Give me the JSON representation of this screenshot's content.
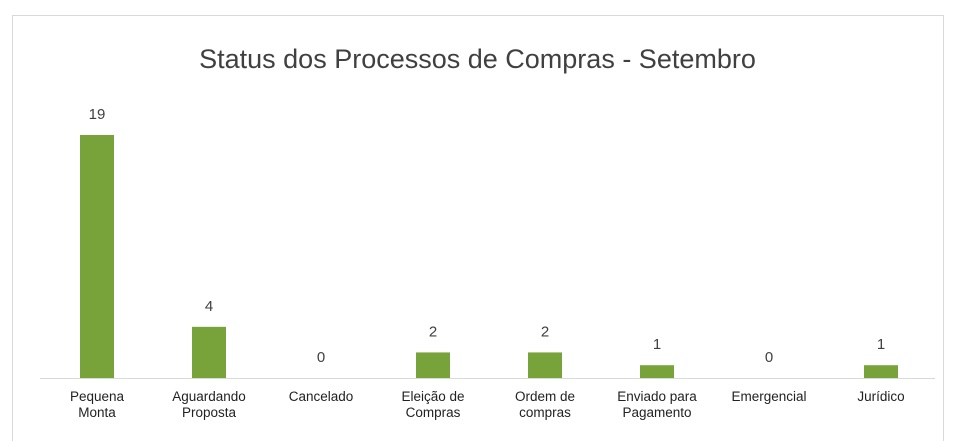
{
  "chart_data": {
    "type": "bar",
    "title": "Status dos Processos de Compras - Setembro",
    "categories": [
      "Pequena Monta",
      "Aguardando Proposta",
      "Cancelado",
      "Eleição de Compras",
      "Ordem de compras",
      "Enviado para Pagamento",
      "Emergencial",
      "Jurídico"
    ],
    "values": [
      19,
      4,
      0,
      2,
      2,
      1,
      0,
      1
    ],
    "color": "#77a33a"
  }
}
